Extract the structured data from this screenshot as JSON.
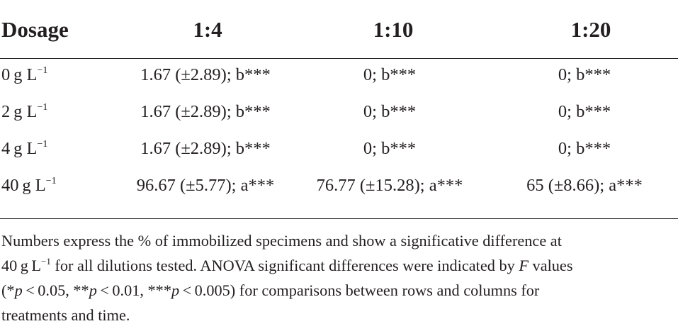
{
  "table": {
    "headers": [
      "Dosage",
      "1:4",
      "1:10",
      "1:20"
    ],
    "rows": [
      {
        "dosage_value": "0",
        "dosage_unit": "g L",
        "dosage_exp": "−1",
        "c1": "1.67 (±2.89); b***",
        "c2": "0; b***",
        "c3": "0; b***"
      },
      {
        "dosage_value": "2",
        "dosage_unit": "g L",
        "dosage_exp": "−1",
        "c1": "1.67 (±2.89); b***",
        "c2": "0; b***",
        "c3": "0; b***"
      },
      {
        "dosage_value": "4",
        "dosage_unit": "g L",
        "dosage_exp": "−1",
        "c1": "1.67 (±2.89); b***",
        "c2": "0; b***",
        "c3": "0; b***"
      },
      {
        "dosage_value": "40",
        "dosage_unit": "g L",
        "dosage_exp": "−1",
        "c1": "96.67 (±5.77); a***",
        "c2": "76.77 (±15.28); a***",
        "c3": "65 (±8.66); a***"
      }
    ]
  },
  "footnote": {
    "line1": "Numbers express the % of immobilized specimens and show a significative difference at",
    "line2_pre": "40 g L",
    "line2_exp": "−1",
    "line2_post": " for all dilutions tested. ANOVA significant differences were indicated by ",
    "line2_F": "F",
    "line2_end": " values",
    "line3_a": "(*",
    "p1": "p",
    "line3_b": " < 0.05, **",
    "p2": "p",
    "line3_c": " < 0.01, ***",
    "p3": "p",
    "line3_d": " < 0.005) for comparisons between rows and columns for",
    "line4": "treatments and time."
  }
}
